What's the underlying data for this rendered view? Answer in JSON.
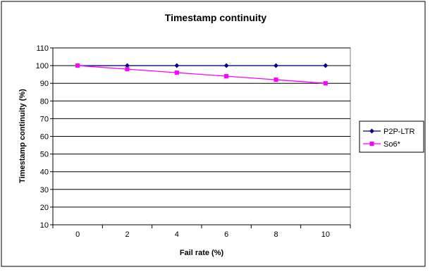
{
  "chart_data": {
    "type": "line",
    "title": "Timestamp continuity",
    "xlabel": "Fail rate (%)",
    "ylabel": "Timestamp continuity (%)",
    "categories": [
      "0",
      "2",
      "4",
      "6",
      "8",
      "10"
    ],
    "ylim": [
      10,
      110
    ],
    "yticks": [
      10,
      20,
      30,
      40,
      50,
      60,
      70,
      80,
      90,
      100,
      110
    ],
    "grid": true,
    "legend_position": "right",
    "series": [
      {
        "name": "P2P-LTR",
        "values": [
          100,
          100,
          100,
          100,
          100,
          100
        ],
        "color": "#000080",
        "marker": "diamond"
      },
      {
        "name": "So6*",
        "values": [
          100,
          98,
          96,
          94,
          92,
          90
        ],
        "color": "#ff00ff",
        "marker": "square"
      }
    ]
  }
}
